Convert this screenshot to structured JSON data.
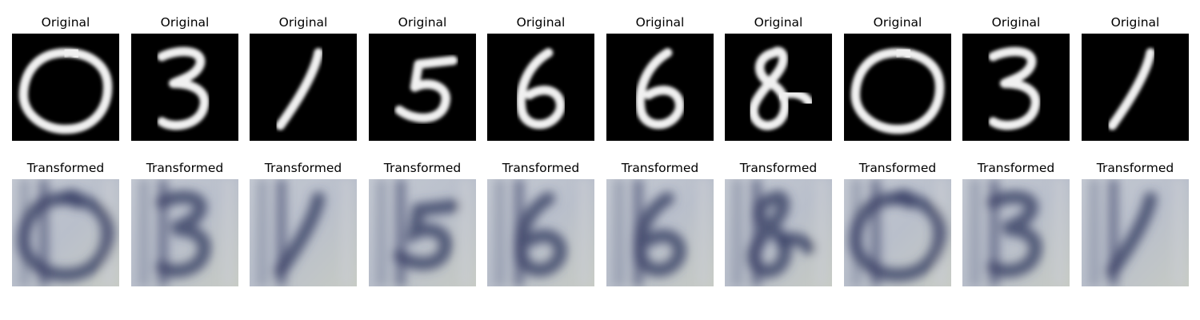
{
  "rows": [
    {
      "title": "Original",
      "images": [
        {
          "digit": "0"
        },
        {
          "digit": "3"
        },
        {
          "digit": "1"
        },
        {
          "digit": "5"
        },
        {
          "digit": "6"
        },
        {
          "digit": "6"
        },
        {
          "digit": "8"
        },
        {
          "digit": "0"
        },
        {
          "digit": "3"
        },
        {
          "digit": "1"
        }
      ]
    },
    {
      "title": "Transformed",
      "images": [
        {
          "digit": "0"
        },
        {
          "digit": "3"
        },
        {
          "digit": "1"
        },
        {
          "digit": "5"
        },
        {
          "digit": "6"
        },
        {
          "digit": "6"
        },
        {
          "digit": "8"
        },
        {
          "digit": "0"
        },
        {
          "digit": "3"
        },
        {
          "digit": "1"
        }
      ]
    }
  ],
  "colors": {
    "original_background": "#000000",
    "original_stroke": "#f0f0f0",
    "transformed_background": "#b9bfcb",
    "transformed_stroke": "#3d4468"
  }
}
